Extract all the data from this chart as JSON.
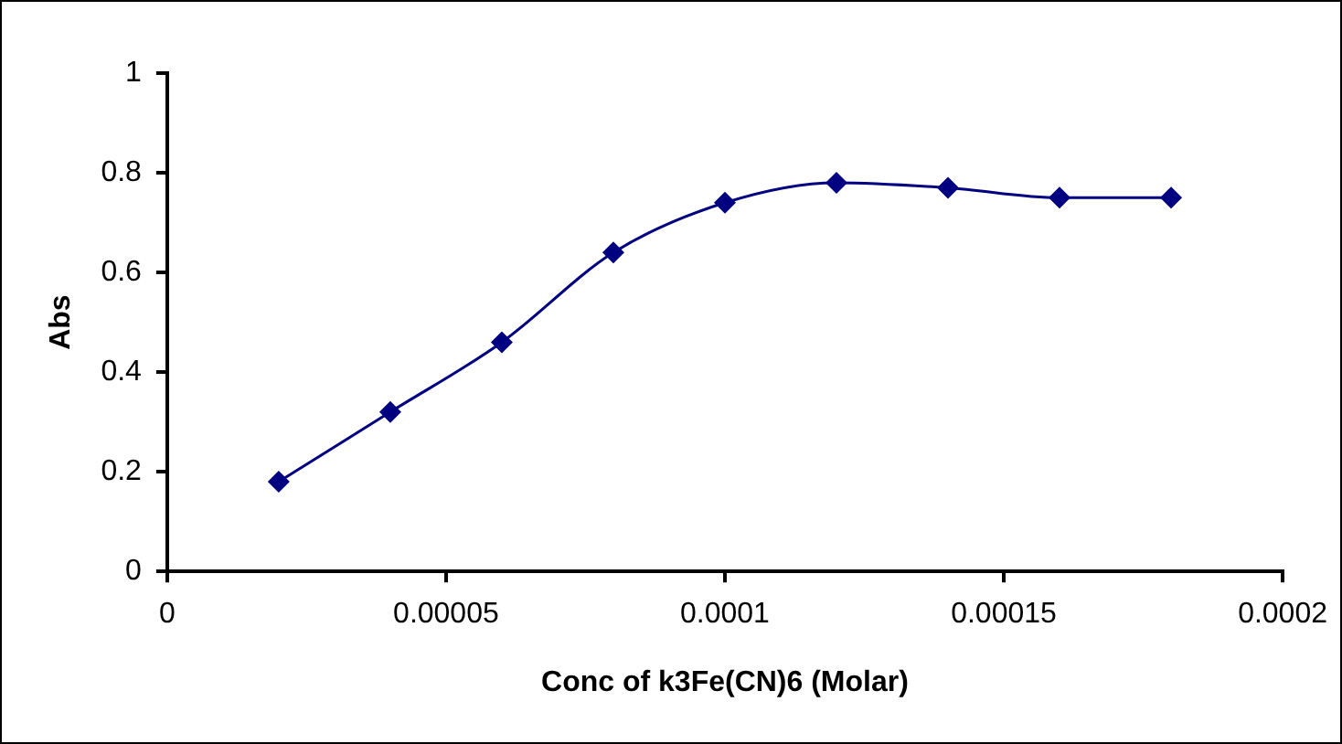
{
  "chart_data": {
    "type": "line",
    "xlabel": "Conc of k3Fe(CN)6 (Molar)",
    "ylabel": "Abs",
    "x": [
      2e-05,
      4e-05,
      6e-05,
      8e-05,
      0.0001,
      0.00012,
      0.00014,
      0.00016,
      0.00018
    ],
    "series": [
      {
        "color": "#000080",
        "values": [
          0.18,
          0.32,
          0.46,
          0.64,
          0.74,
          0.78,
          0.77,
          0.75,
          0.75
        ]
      }
    ],
    "xlim": [
      0,
      0.0002
    ],
    "xticks": [
      0,
      {
        "value": 5e-05,
        "label": "0.00005"
      },
      0.0001,
      0.00015,
      0.0002
    ],
    "ylim": [
      0,
      1
    ],
    "yticks": [
      0,
      0.2,
      0.4,
      0.6,
      0.8,
      1
    ],
    "grid": false,
    "legend": false,
    "marker": "diamond",
    "line_style": "solid"
  }
}
